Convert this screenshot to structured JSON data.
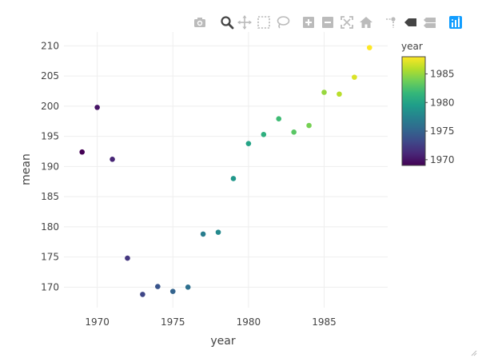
{
  "modebar": {
    "buttons": [
      {
        "name": "camera-icon",
        "label": "Download plot as a png"
      },
      {
        "name": "zoom-icon",
        "label": "Zoom"
      },
      {
        "name": "pan-icon",
        "label": "Pan"
      },
      {
        "name": "box-select-icon",
        "label": "Box Select"
      },
      {
        "name": "lasso-select-icon",
        "label": "Lasso Select"
      },
      {
        "name": "zoom-in-icon",
        "label": "Zoom in"
      },
      {
        "name": "zoom-out-icon",
        "label": "Zoom out"
      },
      {
        "name": "autoscale-icon",
        "label": "Autoscale"
      },
      {
        "name": "reset-axes-icon",
        "label": "Reset axes"
      },
      {
        "name": "spike-lines-icon",
        "label": "Toggle Spike Lines"
      },
      {
        "name": "hover-closest-icon",
        "label": "Show closest data on hover"
      },
      {
        "name": "hover-compare-icon",
        "label": "Compare data on hover"
      },
      {
        "name": "plotly-logo-icon",
        "label": "Produced with Plotly"
      }
    ],
    "active_color": "#444444",
    "inactive_color": "#bbbbbb",
    "logo_color": "#119dff"
  },
  "chart_data": {
    "type": "scatter",
    "title": "",
    "xlabel": "year",
    "ylabel": "mean",
    "xlim": [
      1967.8,
      1989.2
    ],
    "ylim": [
      166.6,
      212.3
    ],
    "x_ticks": [
      1970,
      1975,
      1980,
      1985
    ],
    "y_ticks": [
      170,
      175,
      180,
      185,
      190,
      195,
      200,
      205,
      210
    ],
    "grid": true,
    "x": [
      1969,
      1970,
      1971,
      1972,
      1973,
      1974,
      1975,
      1976,
      1977,
      1978,
      1979,
      1980,
      1981,
      1982,
      1983,
      1984,
      1985,
      1986,
      1987,
      1988
    ],
    "y": [
      192.4,
      199.8,
      191.2,
      174.8,
      168.8,
      170.1,
      169.3,
      170.0,
      178.8,
      179.1,
      188.0,
      193.8,
      195.3,
      197.9,
      195.7,
      196.8,
      202.3,
      202.0,
      204.8,
      209.7
    ],
    "color_by": "year",
    "colorbar": {
      "title": "year",
      "range": [
        1969,
        1988
      ],
      "ticks": [
        1970,
        1975,
        1980,
        1985
      ],
      "colorscale": "Viridis",
      "stops": [
        "#440154",
        "#482878",
        "#3e4989",
        "#31688e",
        "#26828e",
        "#1f9e89",
        "#35b779",
        "#6ece58",
        "#b5de2b",
        "#fde725"
      ]
    },
    "marker_color_hint": "viridis"
  }
}
